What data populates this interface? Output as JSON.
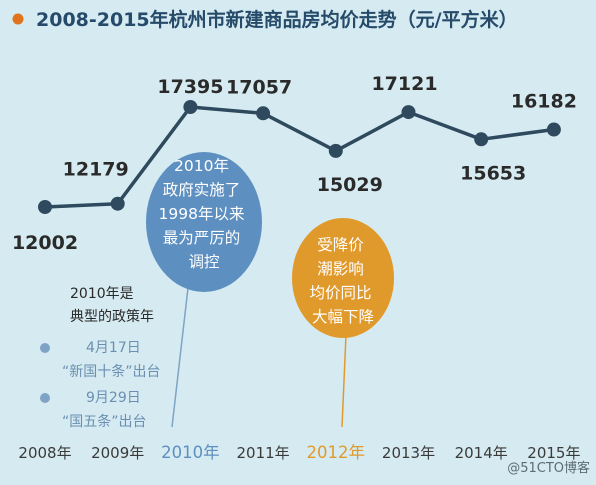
{
  "title": "2008-2015年杭州市新建商品房均价走势（元/平方米）",
  "colors": {
    "background": "#d6ebf1",
    "line": "#2f4a5e",
    "title": "#254a6a",
    "title_dot": "#e0741e",
    "bubble_blue": "#5d8fc0",
    "bubble_orange": "#e09a2c",
    "policy_dot": "#7ea3c4",
    "policy_text": "#6a8fb2",
    "label": "#2a2a2a"
  },
  "chart_data": {
    "type": "line",
    "title": "2008-2015年杭州市新建商品房均价走势（元/平方米）",
    "categories": [
      "2008年",
      "2009年",
      "2010年",
      "2011年",
      "2012年",
      "2013年",
      "2014年",
      "2015年"
    ],
    "series": [
      {
        "values": [
          12002,
          12179,
          17395,
          17057,
          15029,
          17121,
          15653,
          16182
        ]
      }
    ],
    "data_labels": [
      "12002",
      "12179",
      "17395",
      "17057",
      "15029",
      "17121",
      "15653",
      "16182"
    ],
    "highlighted_categories": {
      "2010年": "#5d8fc0",
      "2012年": "#e09a2c"
    },
    "grid": false,
    "legend": "none"
  },
  "annotations": {
    "bubble_2010": [
      "2010年",
      "政府实施了",
      "1998年以来",
      "最为严厉的",
      "调控"
    ],
    "bubble_2012": [
      "受降价",
      "潮影响",
      "均价同比",
      "大幅下降"
    ],
    "policy_heading": [
      "2010年是",
      "典型的政策年"
    ],
    "policies": [
      {
        "date": "4月17日",
        "text": "“新国十条”出台"
      },
      {
        "date": "9月29日",
        "text": "“国五条”出台"
      }
    ]
  },
  "watermark": "@51CTO博客"
}
